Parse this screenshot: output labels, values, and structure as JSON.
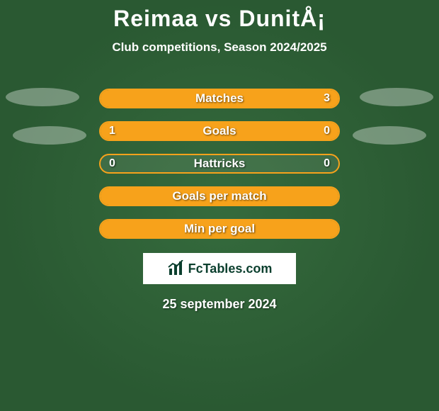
{
  "title": "Reimaa vs DunitÅ¡",
  "subtitle": "Club competitions, Season 2024/2025",
  "brand": "FcTables.com",
  "date": "25 september 2024",
  "colors": {
    "accent": "#f7a21b",
    "background": "#2a5932",
    "ellipse": "rgba(255,255,255,0.35)",
    "brand_text": "#0b3f2e",
    "brand_bg": "#ffffff"
  },
  "bars": [
    {
      "label": "Matches",
      "left_value": "",
      "right_value": "3",
      "left_pct": 100,
      "right_pct": 0
    },
    {
      "label": "Goals",
      "left_value": "1",
      "right_value": "0",
      "left_pct": 77,
      "right_pct": 23
    },
    {
      "label": "Hattricks",
      "left_value": "0",
      "right_value": "0",
      "left_pct": 0,
      "right_pct": 0
    },
    {
      "label": "Goals per match",
      "left_value": "",
      "right_value": "",
      "left_pct": 100,
      "right_pct": 0
    },
    {
      "label": "Min per goal",
      "left_value": "",
      "right_value": "",
      "left_pct": 100,
      "right_pct": 0
    }
  ]
}
